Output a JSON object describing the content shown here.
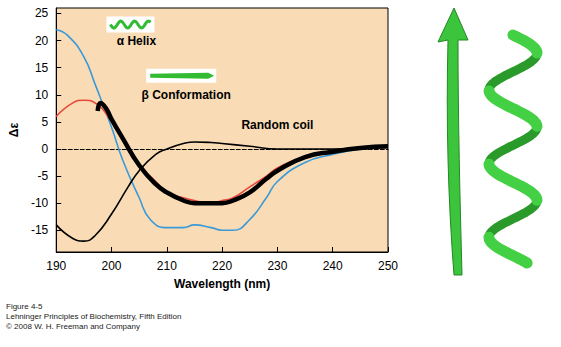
{
  "chart_data": {
    "type": "line",
    "xlabel": "Wavelength (nm)",
    "ylabel": "Δε",
    "xlim": [
      190,
      250
    ],
    "xticks": [
      190,
      200,
      210,
      220,
      230,
      240,
      250
    ],
    "ylim": [
      -19,
      26
    ],
    "yticks": [
      -15,
      -10,
      -5,
      0,
      5,
      10,
      15,
      20,
      25
    ],
    "grid": false,
    "series": [
      {
        "name": "α Helix",
        "color": "#3a9ad9",
        "line_style": "solid",
        "x": [
          190,
          192,
          195,
          197,
          200,
          202,
          205,
          207,
          210,
          213,
          215,
          218,
          220,
          222,
          225,
          228,
          230,
          235,
          240,
          245,
          250
        ],
        "values": [
          22,
          21,
          17,
          12,
          4,
          -2,
          -9,
          -13,
          -14.5,
          -14.5,
          -14,
          -14.5,
          -15,
          -15,
          -13,
          -9,
          -6,
          -2.5,
          -1,
          0,
          0.5
        ]
      },
      {
        "name": "β Conformation",
        "color": "#e8473c",
        "line_style": "solid",
        "x": [
          190,
          193,
          195,
          197,
          200,
          203,
          205,
          208,
          210,
          213,
          215,
          218,
          220,
          222,
          225,
          228,
          230,
          235,
          240,
          245,
          250
        ],
        "values": [
          6,
          8.5,
          9,
          8.5,
          5,
          0,
          -3,
          -6,
          -8,
          -9,
          -9.5,
          -10,
          -9.5,
          -9,
          -7,
          -5,
          -3.5,
          -1.5,
          -0.5,
          0.3,
          0.5
        ]
      },
      {
        "name": "Random coil",
        "color": "#000000",
        "line_style": "solid",
        "x": [
          190,
          193,
          195,
          197,
          200,
          203,
          205,
          208,
          210,
          213,
          215,
          218,
          220,
          225,
          230,
          240,
          250
        ],
        "values": [
          -14,
          -16.5,
          -17,
          -16,
          -12,
          -7,
          -4,
          -1,
          0,
          1,
          1.3,
          1.2,
          1,
          0.5,
          0,
          0,
          0.3
        ]
      },
      {
        "color": "#000000",
        "line_style": "thick",
        "x": [
          197.5,
          198,
          199,
          200,
          202,
          205,
          208,
          210,
          213,
          215,
          218,
          220,
          222,
          225,
          228,
          230,
          235,
          240,
          245,
          250
        ],
        "values": [
          7,
          8.5,
          7.5,
          5.5,
          2,
          -3,
          -6.5,
          -8,
          -9.5,
          -10,
          -10,
          -10,
          -9.5,
          -8,
          -5.5,
          -4,
          -1.5,
          -0.5,
          0.2,
          0.5
        ]
      }
    ],
    "annotations": [
      {
        "text": "α Helix",
        "x": 204.5,
        "y": 20
      },
      {
        "text": "β Conformation",
        "x": 213.5,
        "y": 10
      },
      {
        "text": "Random coil",
        "x": 230,
        "y": 4.5
      }
    ]
  },
  "caption": [
    "Figure 4-5",
    "Lehninger Principles of Biochemistry, Fifth Edition",
    "© 2008 W. H. Freeman and Company"
  ]
}
